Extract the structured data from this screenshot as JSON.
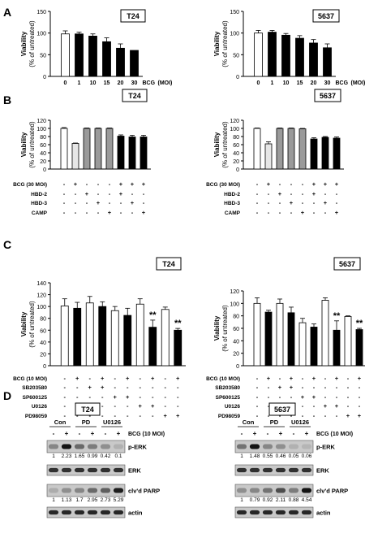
{
  "panels": {
    "A": "A",
    "B": "B",
    "C": "C",
    "D": "D"
  },
  "chart_data": [
    {
      "id": "A1",
      "panel": "A",
      "type": "bar",
      "title": "T24",
      "ylabel": "Viability\n(% of untreated)",
      "ylim": [
        0,
        150
      ],
      "yticks": [
        0,
        50,
        100,
        150
      ],
      "categories": [
        "0",
        "1",
        "10",
        "15",
        "20",
        "30"
      ],
      "values": [
        98,
        98,
        93,
        80,
        65,
        60
      ],
      "errors": [
        7,
        4,
        5,
        9,
        10,
        0
      ],
      "fills": [
        "white",
        "black",
        "black",
        "black",
        "black",
        "black"
      ],
      "xtrail": [
        "BCG",
        "(MOI)"
      ],
      "stars": []
    },
    {
      "id": "A2",
      "panel": "A",
      "type": "bar",
      "title": "5637",
      "ylabel": "Viability\n(% of untreated)",
      "ylim": [
        0,
        150
      ],
      "yticks": [
        0,
        50,
        100,
        150
      ],
      "categories": [
        "0",
        "1",
        "10",
        "15",
        "20",
        "30"
      ],
      "values": [
        100,
        102,
        95,
        88,
        77,
        66
      ],
      "errors": [
        6,
        4,
        4,
        6,
        8,
        9
      ],
      "fills": [
        "white",
        "black",
        "black",
        "black",
        "black",
        "black"
      ],
      "xtrail": [
        "BCG",
        "(MOI)"
      ],
      "stars": []
    },
    {
      "id": "B1",
      "panel": "B",
      "type": "bar",
      "title": "T24",
      "ylabel": "Viability\n(% of untreated)",
      "ylim": [
        0,
        120
      ],
      "yticks": [
        0,
        20,
        40,
        60,
        80,
        100,
        120
      ],
      "categories": [
        "1",
        "2",
        "3",
        "4",
        "5",
        "6",
        "7",
        "8"
      ],
      "values": [
        100,
        63,
        100,
        100,
        100,
        81,
        79,
        79
      ],
      "errors": [
        2,
        1,
        1,
        1,
        1,
        3,
        4,
        4
      ],
      "fills": [
        "white",
        "lightgray",
        "gray",
        "gray",
        "gray",
        "black",
        "black",
        "black"
      ],
      "rows": [
        {
          "label": "BCG (30 MOI)",
          "signs": [
            "-",
            "+",
            "-",
            "-",
            "-",
            "+",
            "+",
            "+"
          ]
        },
        {
          "label": "HBD-2",
          "signs": [
            "-",
            "-",
            "+",
            "-",
            "-",
            "+",
            "-",
            "-"
          ]
        },
        {
          "label": "HBD-3",
          "signs": [
            "-",
            "-",
            "-",
            "+",
            "-",
            "-",
            "+",
            "-"
          ]
        },
        {
          "label": "CAMP",
          "signs": [
            "-",
            "-",
            "-",
            "-",
            "+",
            "-",
            "-",
            "+"
          ]
        }
      ],
      "stars": []
    },
    {
      "id": "B2",
      "panel": "B",
      "type": "bar",
      "title": "5637",
      "ylabel": "Viability\n(% of untreated)",
      "ylim": [
        0,
        120
      ],
      "yticks": [
        0,
        20,
        40,
        60,
        80,
        100,
        120
      ],
      "categories": [
        "1",
        "2",
        "3",
        "4",
        "5",
        "6",
        "7",
        "8"
      ],
      "values": [
        100,
        62,
        100,
        100,
        99,
        74,
        78,
        76
      ],
      "errors": [
        1,
        5,
        1,
        1,
        1,
        3,
        2,
        3
      ],
      "fills": [
        "white",
        "lightgray",
        "gray",
        "gray",
        "gray",
        "black",
        "black",
        "black"
      ],
      "rows": [
        {
          "label": "BCG (30 MOI)",
          "signs": [
            "-",
            "+",
            "-",
            "-",
            "-",
            "+",
            "+",
            "+"
          ]
        },
        {
          "label": "HBD-2",
          "signs": [
            "-",
            "-",
            "+",
            "-",
            "-",
            "+",
            "-",
            "-"
          ]
        },
        {
          "label": "HBD-3",
          "signs": [
            "-",
            "-",
            "-",
            "+",
            "-",
            "-",
            "+",
            "-"
          ]
        },
        {
          "label": "CAMP",
          "signs": [
            "-",
            "-",
            "-",
            "-",
            "+",
            "-",
            "-",
            "+"
          ]
        }
      ],
      "stars": []
    },
    {
      "id": "C1",
      "panel": "C",
      "type": "bar",
      "title": "T24",
      "ylabel": "Viability\n(% of untreated)",
      "ylim": [
        0,
        140
      ],
      "yticks": [
        0,
        20,
        40,
        60,
        80,
        100,
        120,
        140
      ],
      "categories": [
        "1",
        "2",
        "3",
        "4",
        "5",
        "6",
        "7",
        "8",
        "9",
        "10"
      ],
      "values": [
        101,
        97,
        106,
        100,
        93,
        85,
        104,
        65,
        95,
        60
      ],
      "errors": [
        12,
        10,
        11,
        8,
        7,
        12,
        9,
        12,
        4,
        3
      ],
      "fills": [
        "white",
        "black",
        "white",
        "black",
        "white",
        "black",
        "white",
        "black",
        "white",
        "black"
      ],
      "rows": [
        {
          "label": "BCG (10 MOI)",
          "signs": [
            "-",
            "+",
            "-",
            "+",
            "-",
            "+",
            "-",
            "+",
            "-",
            "+"
          ]
        },
        {
          "label": "SB203580",
          "signs": [
            "-",
            "-",
            "+",
            "+",
            "-",
            "-",
            "-",
            "-",
            "-",
            "-"
          ]
        },
        {
          "label": "SP600125",
          "signs": [
            "-",
            "-",
            "-",
            "-",
            "+",
            "+",
            "-",
            "-",
            "-",
            "-"
          ]
        },
        {
          "label": "U0126",
          "signs": [
            "-",
            "-",
            "-",
            "-",
            "-",
            "-",
            "+",
            "+",
            "-",
            "-"
          ]
        },
        {
          "label": "PD98059",
          "signs": [
            "-",
            "-",
            "-",
            "-",
            "-",
            "-",
            "-",
            "-",
            "+",
            "+"
          ]
        }
      ],
      "stars": [
        {
          "index": 7,
          "text": "**"
        },
        {
          "index": 9,
          "text": "**"
        }
      ]
    },
    {
      "id": "C2",
      "panel": "C",
      "type": "bar",
      "title": "5637",
      "ylabel": "Viability\n(% of untreated)",
      "ylim": [
        0,
        120
      ],
      "yticks": [
        0,
        20,
        40,
        60,
        80,
        100,
        120
      ],
      "categories": [
        "1",
        "2",
        "3",
        "4",
        "5",
        "6",
        "7",
        "8",
        "9",
        "10"
      ],
      "values": [
        100,
        86,
        100,
        85,
        69,
        62,
        105,
        57,
        79,
        58
      ],
      "errors": [
        9,
        3,
        7,
        9,
        7,
        5,
        4,
        15,
        1,
        2
      ],
      "fills": [
        "white",
        "black",
        "white",
        "black",
        "white",
        "black",
        "white",
        "black",
        "white",
        "black"
      ],
      "rows": [
        {
          "label": "BCG (10 MOI)",
          "signs": [
            "-",
            "+",
            "-",
            "+",
            "-",
            "+",
            "-",
            "+",
            "-",
            "+"
          ]
        },
        {
          "label": "SB203580",
          "signs": [
            "-",
            "-",
            "+",
            "+",
            "-",
            "-",
            "-",
            "-",
            "-",
            "-"
          ]
        },
        {
          "label": "SP600125",
          "signs": [
            "-",
            "-",
            "-",
            "-",
            "+",
            "+",
            "-",
            "-",
            "-",
            "-"
          ]
        },
        {
          "label": "U0126",
          "signs": [
            "-",
            "-",
            "-",
            "-",
            "-",
            "-",
            "+",
            "+",
            "-",
            "-"
          ]
        },
        {
          "label": "PD98059",
          "signs": [
            "-",
            "-",
            "-",
            "-",
            "-",
            "-",
            "-",
            "-",
            "+",
            "+"
          ]
        }
      ],
      "stars": [
        {
          "index": 7,
          "text": "**"
        },
        {
          "index": 9,
          "text": "**"
        }
      ]
    }
  ],
  "blots": [
    {
      "id": "D1",
      "title": "T24",
      "groups": [
        "Con",
        "PD",
        "U0126"
      ],
      "bcg_label": "BCG (10 MOI)",
      "signs": [
        "-",
        "+",
        "-",
        "+",
        "-",
        "+"
      ],
      "bands": [
        {
          "label": "p-ERK",
          "intensity": [
            0.35,
            0.95,
            0.5,
            0.4,
            0.3,
            0.12
          ],
          "quant": [
            "1",
            "2.23",
            "1.65",
            "0.99",
            "0.42",
            "0.1"
          ]
        },
        {
          "label": "ERK",
          "intensity": [
            0.8,
            0.8,
            0.8,
            0.8,
            0.8,
            0.8
          ],
          "quant": []
        },
        {
          "label": "clv'd PARP",
          "intensity": [
            0.15,
            0.3,
            0.35,
            0.5,
            0.55,
            0.9
          ],
          "quant": [
            "1",
            "1.13",
            "1.7",
            "2.95",
            "2.73",
            "5.29"
          ]
        },
        {
          "label": "actin",
          "intensity": [
            0.85,
            0.85,
            0.85,
            0.85,
            0.85,
            0.85
          ],
          "quant": []
        }
      ]
    },
    {
      "id": "D2",
      "title": "5637",
      "groups": [
        "Con",
        "PD",
        "U0126"
      ],
      "bcg_label": "BCG (10 MOI)",
      "signs": [
        "-",
        "+",
        "-",
        "+",
        "-",
        "+"
      ],
      "bands": [
        {
          "label": "p-ERK",
          "intensity": [
            0.45,
            0.95,
            0.35,
            0.3,
            0.12,
            0.1
          ],
          "quant": [
            "1",
            "1.48",
            "0.55",
            "0.46",
            "0.05",
            "0.06"
          ]
        },
        {
          "label": "ERK",
          "intensity": [
            0.8,
            0.8,
            0.8,
            0.8,
            0.8,
            0.8
          ],
          "quant": []
        },
        {
          "label": "clv'd PARP",
          "intensity": [
            0.3,
            0.35,
            0.45,
            0.65,
            0.4,
            0.95
          ],
          "quant": [
            "1",
            "0.79",
            "0.92",
            "2.11",
            "0.88",
            "4.54"
          ]
        },
        {
          "label": "actin",
          "intensity": [
            0.85,
            0.85,
            0.85,
            0.85,
            0.85,
            0.85
          ],
          "quant": []
        }
      ]
    }
  ]
}
